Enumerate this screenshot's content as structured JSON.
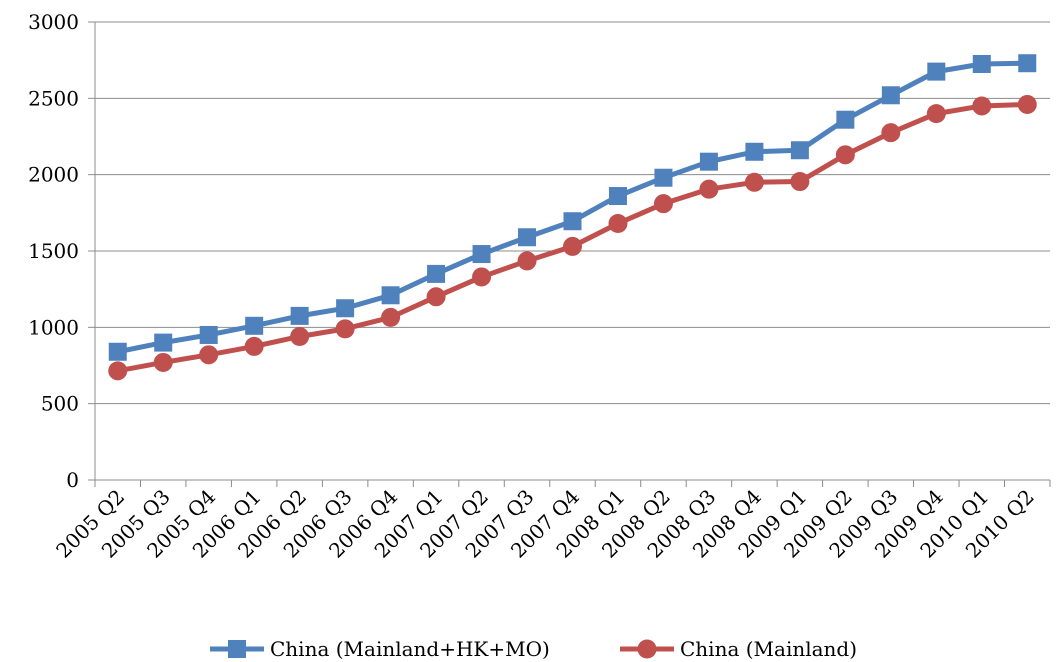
{
  "chart_data": {
    "type": "line",
    "title": "",
    "xlabel": "",
    "ylabel": "",
    "ylim": [
      0,
      3000
    ],
    "yticks": [
      0,
      500,
      1000,
      1500,
      2000,
      2500,
      3000
    ],
    "grid": "horizontal",
    "legend_position": "bottom",
    "categories": [
      "2005 Q2",
      "2005 Q3",
      "2005 Q4",
      "2006 Q1",
      "2006 Q2",
      "2006 Q3",
      "2006 Q4",
      "2007 Q1",
      "2007 Q2",
      "2007 Q3",
      "2007 Q4",
      "2008 Q1",
      "2008 Q2",
      "2008 Q3",
      "2008 Q4",
      "2009 Q1",
      "2009 Q2",
      "2009 Q3",
      "2009 Q4",
      "2010 Q1",
      "2010 Q2"
    ],
    "series": [
      {
        "name": "China (Mainland+HK+MO)",
        "color": "#4f81bd",
        "marker": "square",
        "values": [
          840,
          900,
          950,
          1010,
          1075,
          1125,
          1210,
          1350,
          1480,
          1590,
          1695,
          1860,
          1980,
          2085,
          2150,
          2160,
          2360,
          2520,
          2675,
          2725,
          2730
        ]
      },
      {
        "name": "China (Mainland)",
        "color": "#c0504d",
        "marker": "circle",
        "values": [
          715,
          770,
          820,
          875,
          940,
          990,
          1065,
          1200,
          1330,
          1435,
          1530,
          1680,
          1810,
          1905,
          1950,
          1955,
          2130,
          2275,
          2400,
          2450,
          2460
        ]
      }
    ]
  }
}
